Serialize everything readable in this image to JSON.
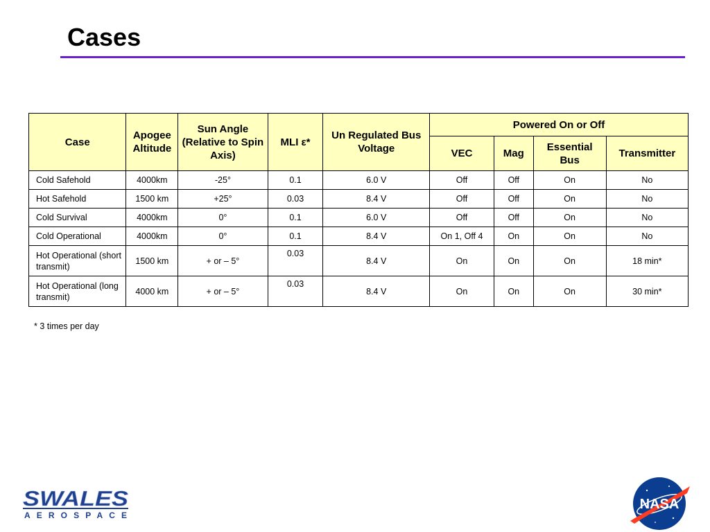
{
  "title": "Cases",
  "table": {
    "headers": {
      "case": "Case",
      "apogee": "Apogee Altitude",
      "sun_angle": "Sun Angle (Relative to Spin Axis)",
      "mli": "MLI ε*",
      "bus_voltage": "Un Regulated Bus Voltage",
      "powered_group": "Powered On or Off",
      "vec": "VEC",
      "mag": "Mag",
      "essential_bus": "Essential Bus",
      "transmitter": "Transmitter"
    },
    "rows": [
      {
        "case": "Cold Safehold",
        "apogee": "4000km",
        "sun_angle": "-25°",
        "mli": "0.1",
        "voltage": "6.0 V",
        "vec": "Off",
        "mag": "Off",
        "essential_bus": "On",
        "transmitter": "No"
      },
      {
        "case": "Hot Safehold",
        "apogee": "1500 km",
        "sun_angle": "+25°",
        "mli": "0.03",
        "voltage": "8.4 V",
        "vec": "Off",
        "mag": "Off",
        "essential_bus": "On",
        "transmitter": "No"
      },
      {
        "case": "Cold Survival",
        "apogee": "4000km",
        "sun_angle": "0°",
        "mli": "0.1",
        "voltage": "6.0 V",
        "vec": "Off",
        "mag": "Off",
        "essential_bus": "On",
        "transmitter": "No"
      },
      {
        "case": "Cold Operational",
        "apogee": "4000km",
        "sun_angle": "0°",
        "mli": "0.1",
        "voltage": "8.4 V",
        "vec": "On 1, Off 4",
        "mag": "On",
        "essential_bus": "On",
        "transmitter": "No"
      },
      {
        "case": "Hot Operational (short transmit)",
        "apogee": "1500 km",
        "sun_angle": "+ or – 5°",
        "mli": "0.03",
        "voltage": "8.4 V",
        "vec": "On",
        "mag": "On",
        "essential_bus": "On",
        "transmitter": "18 min*"
      },
      {
        "case": "Hot Operational (long transmit)",
        "apogee": "4000 km",
        "sun_angle": "+ or – 5°",
        "mli": "0.03",
        "voltage": "8.4 V",
        "vec": "On",
        "mag": "On",
        "essential_bus": "On",
        "transmitter": "30 min*"
      }
    ]
  },
  "footnote": "* 3 times per day",
  "logos": {
    "swales_top": "SWALES",
    "swales_bottom": "AEROSPACE",
    "nasa": "NASA"
  },
  "colors": {
    "title_rule": "#6a1fd0",
    "header_fill": "#ffffc0",
    "swales_blue": "#1f3f8f",
    "nasa_blue": "#0b3d91",
    "nasa_red": "#fc3d21"
  }
}
